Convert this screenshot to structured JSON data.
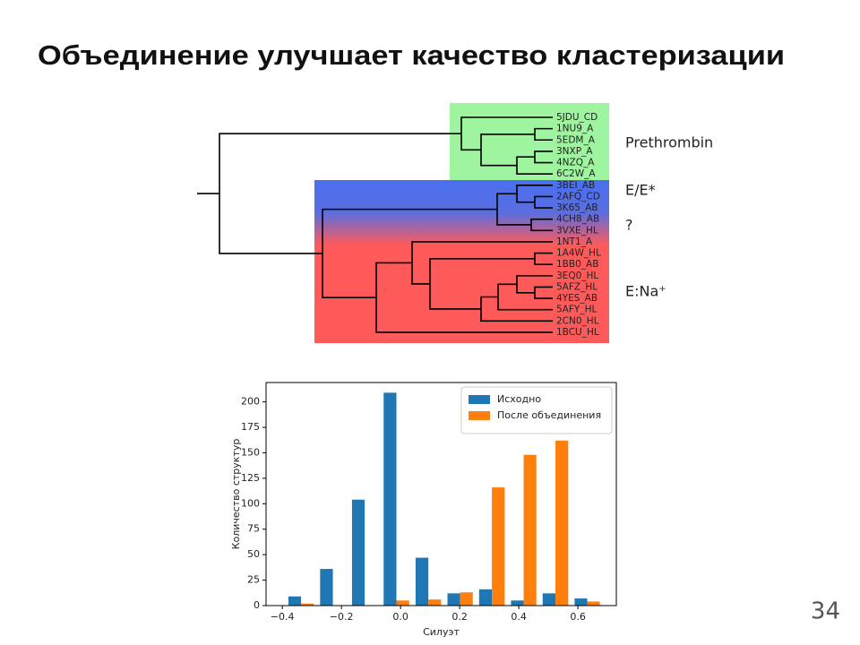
{
  "title": "Объединение улучшает качество кластеризации",
  "page_number": "34",
  "dendrogram": {
    "leaves": [
      "5JDU_CD",
      "1NU9_A",
      "5EDM_A",
      "3NXP_A",
      "4NZQ_A",
      "6C2W_A",
      "3BEI_AB",
      "2AFQ_CD",
      "3K65_AB",
      "4CH8_AB",
      "3VXE_HL",
      "1NT1_A",
      "1A4W_HL",
      "1BB0_AB",
      "3EQ0_HL",
      "5AFZ_HL",
      "4YES_AB",
      "5AFY_HL",
      "2CN0_HL",
      "1BCU_HL"
    ],
    "groups": [
      "Prethrombin",
      "E/E*",
      "?",
      "E:Na⁺"
    ]
  },
  "chart_data": {
    "type": "histogram",
    "xlabel": "Силуэт",
    "ylabel": "Количество структур",
    "bins": [
      -0.39,
      -0.283,
      -0.175,
      -0.068,
      0.04,
      0.148,
      0.255,
      0.363,
      0.47,
      0.578,
      0.685
    ],
    "series": [
      {
        "name": "Исходно",
        "color": "#1f77b4",
        "values": [
          9,
          36,
          104,
          209,
          47,
          12,
          16,
          5,
          12,
          7
        ]
      },
      {
        "name": "После объединения",
        "color": "#ff7f0e",
        "values": [
          2,
          0,
          0,
          5,
          6,
          13,
          116,
          148,
          162,
          4
        ]
      }
    ],
    "xlim": [
      -0.455,
      0.73
    ],
    "ylim": [
      0,
      219
    ],
    "xticks": [
      {
        "value": -0.4,
        "label": "−0.4"
      },
      {
        "value": -0.2,
        "label": "−0.2"
      },
      {
        "value": 0,
        "label": "0.0"
      },
      0.2,
      0.4,
      0.6
    ],
    "yticks": [
      0,
      25,
      50,
      75,
      100,
      125,
      150,
      175,
      200
    ],
    "legend": "upper right"
  }
}
